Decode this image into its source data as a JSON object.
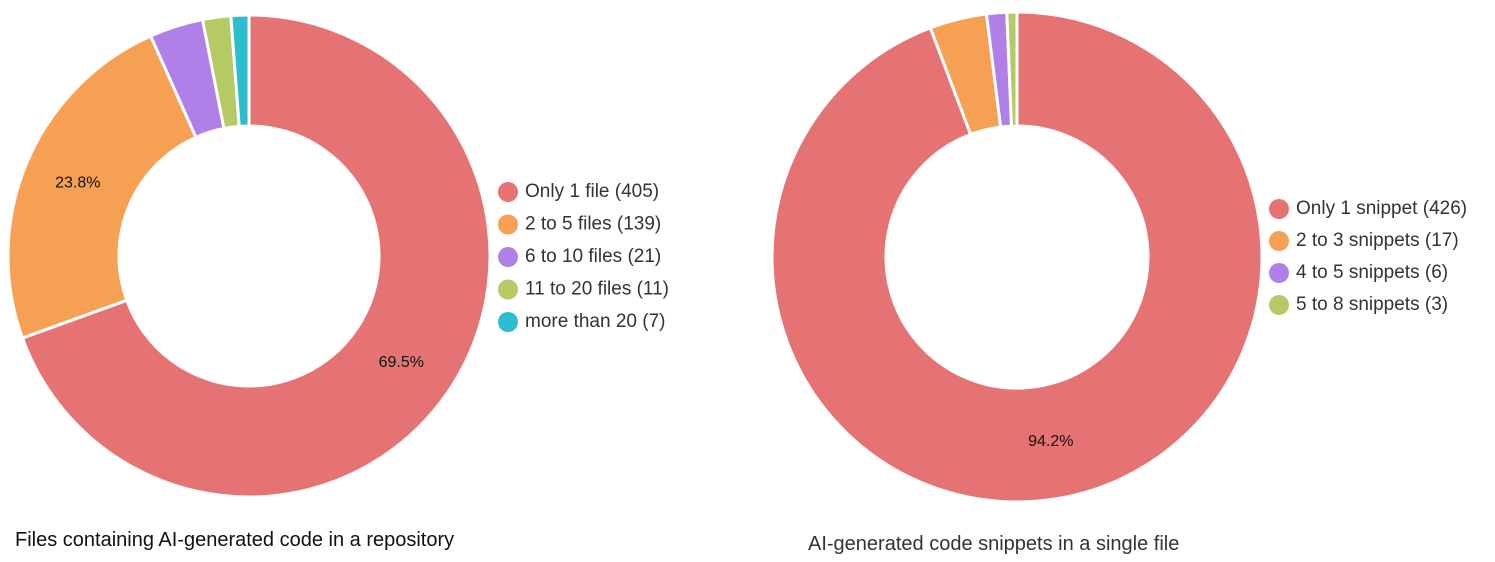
{
  "chart_data": [
    {
      "type": "pie",
      "donut": true,
      "title": "Files containing AI-generated code in a repository",
      "legend_position": "right",
      "categories": [
        "Only 1 file",
        "2 to 5 files",
        "6 to 10 files",
        "11 to 20 files",
        "more than 20"
      ],
      "values": [
        405,
        139,
        21,
        11,
        7
      ],
      "legend_labels": [
        "Only 1 file (405)",
        "2 to 5 files (139)",
        "6 to 10 files (21)",
        "11 to 20 files (11)",
        "more than 20 (7)"
      ],
      "data_labels": [
        "69.5%",
        "23.8%",
        "",
        "",
        ""
      ],
      "colors": [
        "#e57373",
        "#f5a052",
        "#b07fe8",
        "#b5c965",
        "#2ebccf"
      ]
    },
    {
      "type": "pie",
      "donut": true,
      "title": "AI-generated code snippets in a single file",
      "legend_position": "right",
      "categories": [
        "Only 1 snippet",
        "2 to 3 snippets",
        "4 to 5 snippets",
        "5 to 8 snippets"
      ],
      "values": [
        426,
        17,
        6,
        3
      ],
      "legend_labels": [
        "Only 1 snippet (426)",
        "2 to 3 snippets (17)",
        "4 to 5 snippets (6)",
        "5 to 8 snippets (3)"
      ],
      "data_labels": [
        "94.2%",
        "",
        "",
        ""
      ],
      "colors": [
        "#e57373",
        "#f5a052",
        "#b07fe8",
        "#b5c965"
      ]
    }
  ]
}
